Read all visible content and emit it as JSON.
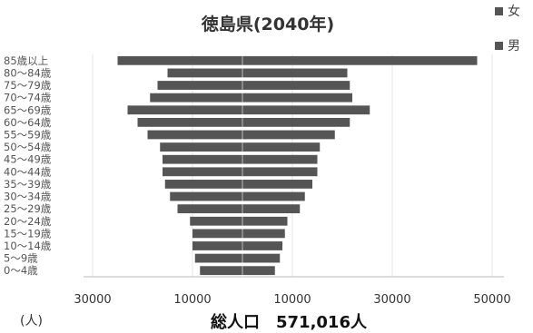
{
  "chart_data": {
    "type": "bar",
    "orientation": "horizontal",
    "title": "徳島県(2040年)",
    "categories": [
      "85歳以上",
      "80～84歳",
      "75～79歳",
      "70～74歳",
      "65～69歳",
      "60～64歳",
      "55～59歳",
      "50～54歳",
      "45～49歳",
      "40～44歳",
      "35～39歳",
      "30～34歳",
      "25～29歳",
      "20～24歳",
      "15～19歳",
      "10～14歳",
      "5～9歳",
      "0～4歳"
    ],
    "series": [
      {
        "name": "女",
        "side": "right",
        "color": "#555555",
        "values": [
          47000,
          21000,
          21500,
          22000,
          25500,
          21500,
          18500,
          15500,
          15000,
          15000,
          14000,
          12500,
          11500,
          9000,
          8500,
          8000,
          7500,
          6500
        ]
      },
      {
        "name": "男",
        "side": "left",
        "color": "#555555",
        "values": [
          25000,
          15000,
          17000,
          18500,
          23000,
          21000,
          19000,
          16500,
          16000,
          16000,
          15500,
          14500,
          13000,
          10500,
          10000,
          10000,
          9500,
          8500
        ]
      }
    ],
    "xtick_labels": [
      "30000",
      "10000",
      "10000",
      "30000",
      "50000"
    ],
    "xlabel": "(人)",
    "legend_position": "top-right",
    "grid": "vertical"
  },
  "total_label": "総人口　571,016人"
}
